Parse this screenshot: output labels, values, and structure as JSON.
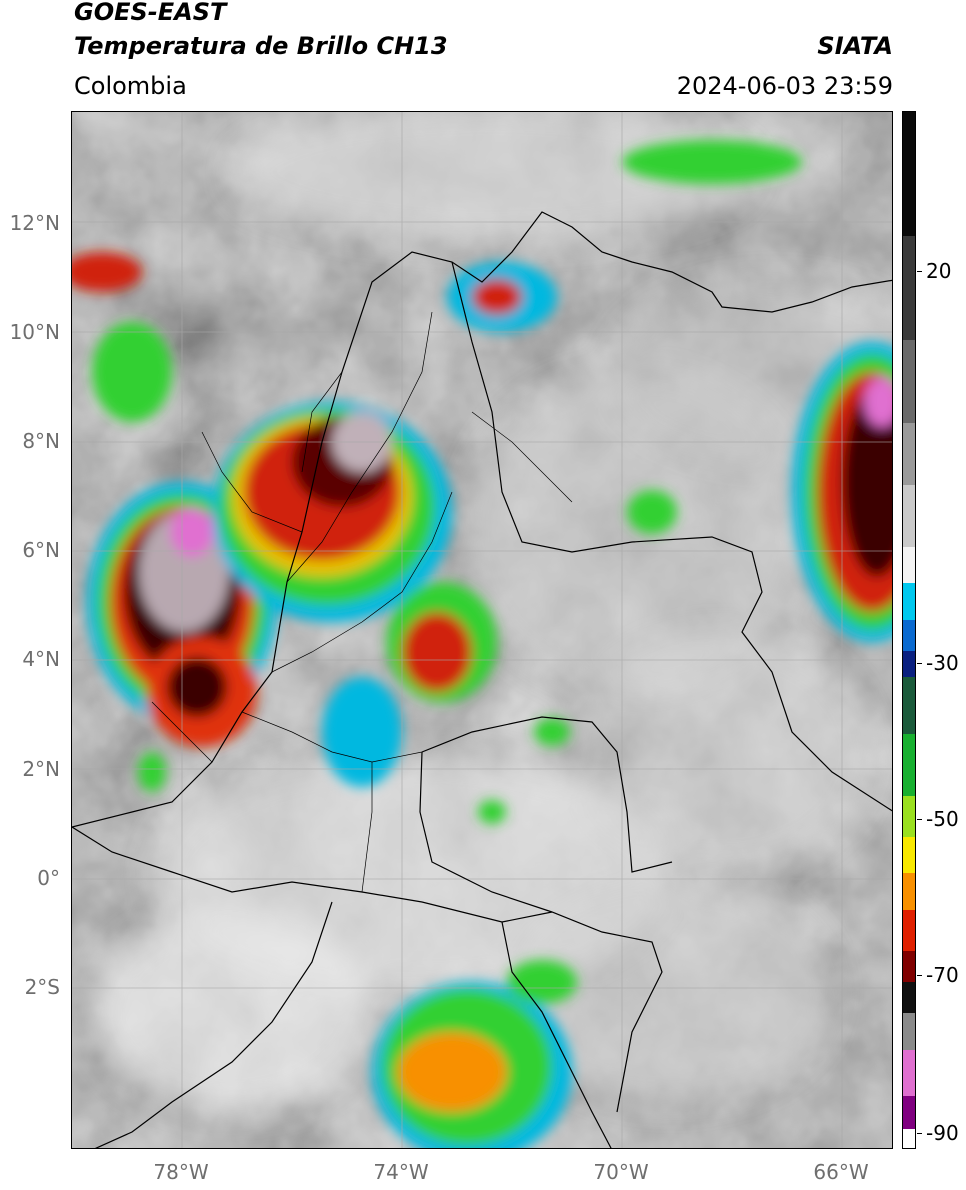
{
  "header": {
    "satellite": "GOES-EAST",
    "product": "Temperatura de Brillo CH13",
    "organization": "SIATA",
    "region": "Colombia",
    "datetime": "2024-06-03 23:59"
  },
  "map": {
    "lat_labels": [
      "12°N",
      "10°N",
      "8°N",
      "6°N",
      "4°N",
      "2°N",
      "0°",
      "2°S"
    ],
    "lon_labels": [
      "78°W",
      "74°W",
      "70°W",
      "66°W"
    ],
    "grid": true,
    "background": "grayscale infrared brightness temperature imagery",
    "colors": {
      "cold_tops_pink": "#e070d0",
      "red": "#cc2010",
      "green": "#30d030",
      "cyan": "#00c8e8",
      "blue": "#0040a0"
    }
  },
  "colorbar": {
    "tick_labels": [
      "20",
      "-30",
      "-50",
      "-70",
      "-90"
    ],
    "segments": [
      {
        "color": "#0a0a0a"
      },
      {
        "color": "#3a3a3a"
      },
      {
        "color": "#6a6a6a"
      },
      {
        "color": "#9a9a9a"
      },
      {
        "color": "#cacaca"
      },
      {
        "color": "#f4f4f4"
      },
      {
        "color": "#00c8ee"
      },
      {
        "color": "#0a6ad0"
      },
      {
        "color": "#0a2080"
      },
      {
        "color": "#1a5a3a"
      },
      {
        "color": "#18b030"
      },
      {
        "color": "#9ae020"
      },
      {
        "color": "#f8e800"
      },
      {
        "color": "#f89000"
      },
      {
        "color": "#e02000"
      },
      {
        "color": "#800000"
      },
      {
        "color": "#101010"
      },
      {
        "color": "#8a8a8a"
      },
      {
        "color": "#e070d0"
      },
      {
        "color": "#800080"
      },
      {
        "color": "#ffffff"
      }
    ]
  }
}
